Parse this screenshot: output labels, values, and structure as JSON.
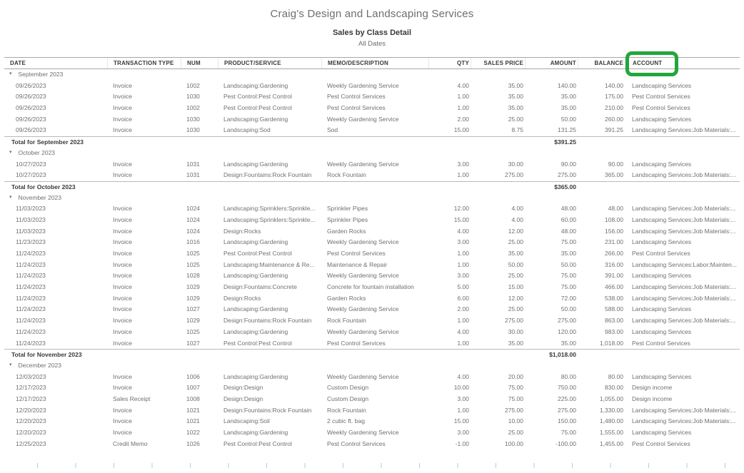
{
  "report": {
    "company": "Craig's Design and Landscaping Services",
    "title": "Sales by Class Detail",
    "date_range": "All Dates"
  },
  "highlight": {
    "highlighted_column": "ACCOUNT",
    "color": "#22a63c"
  },
  "table": {
    "columns": [
      {
        "label": "DATE",
        "align": "left"
      },
      {
        "label": "TRANSACTION TYPE",
        "align": "left"
      },
      {
        "label": "NUM",
        "align": "left"
      },
      {
        "label": "PRODUCT/SERVICE",
        "align": "left"
      },
      {
        "label": "MEMO/DESCRIPTION",
        "align": "left"
      },
      {
        "label": "QTY",
        "align": "right"
      },
      {
        "label": "SALES PRICE",
        "align": "right"
      },
      {
        "label": "AMOUNT",
        "align": "right"
      },
      {
        "label": "BALANCE",
        "align": "right"
      },
      {
        "label": "ACCOUNT",
        "align": "left"
      }
    ],
    "sections": [
      {
        "label": "September 2023",
        "rows": [
          [
            "09/26/2023",
            "Invoice",
            "1002",
            "Landscaping:Gardening",
            "Weekly Gardening Service",
            "4.00",
            "35.00",
            "140.00",
            "140.00",
            "Landscaping Services"
          ],
          [
            "09/26/2023",
            "Invoice",
            "1030",
            "Pest Control:Pest Control",
            "Pest Control Services",
            "1.00",
            "35.00",
            "35.00",
            "175.00",
            "Pest Control Services"
          ],
          [
            "09/26/2023",
            "Invoice",
            "1002",
            "Pest Control:Pest Control",
            "Pest Control Services",
            "1.00",
            "35.00",
            "35.00",
            "210.00",
            "Pest Control Services"
          ],
          [
            "09/26/2023",
            "Invoice",
            "1030",
            "Landscaping:Gardening",
            "Weekly Gardening Service",
            "2.00",
            "25.00",
            "50.00",
            "260.00",
            "Landscaping Services"
          ],
          [
            "09/26/2023",
            "Invoice",
            "1030",
            "Landscaping:Sod",
            "Sod",
            "15.00",
            "8.75",
            "131.25",
            "391.25",
            "Landscaping Services:Job Materials:..."
          ]
        ],
        "total_label": "Total for September 2023",
        "total_amount": "$391.25"
      },
      {
        "label": "October 2023",
        "rows": [
          [
            "10/27/2023",
            "Invoice",
            "1031",
            "Landscaping:Gardening",
            "Weekly Gardening Service",
            "3.00",
            "30.00",
            "90.00",
            "90.00",
            "Landscaping Services"
          ],
          [
            "10/27/2023",
            "Invoice",
            "1031",
            "Design:Fountains:Rock Fountain",
            "Rock Fountain",
            "1.00",
            "275.00",
            "275.00",
            "365.00",
            "Landscaping Services:Job Materials:..."
          ]
        ],
        "total_label": "Total for October 2023",
        "total_amount": "$365.00"
      },
      {
        "label": "November 2023",
        "rows": [
          [
            "11/03/2023",
            "Invoice",
            "1024",
            "Landscaping:Sprinklers:Sprinkle...",
            "Sprinkler Pipes",
            "12.00",
            "4.00",
            "48.00",
            "48.00",
            "Landscaping Services:Job Materials:..."
          ],
          [
            "11/03/2023",
            "Invoice",
            "1024",
            "Landscaping:Sprinklers:Sprinkle...",
            "Sprinkler Pipes",
            "15.00",
            "4.00",
            "60.00",
            "108.00",
            "Landscaping Services:Job Materials:..."
          ],
          [
            "11/03/2023",
            "Invoice",
            "1024",
            "Design:Rocks",
            "Garden Rocks",
            "4.00",
            "12.00",
            "48.00",
            "156.00",
            "Landscaping Services:Job Materials:..."
          ],
          [
            "11/23/2023",
            "Invoice",
            "1016",
            "Landscaping:Gardening",
            "Weekly Gardening Service",
            "3.00",
            "25.00",
            "75.00",
            "231.00",
            "Landscaping Services"
          ],
          [
            "11/24/2023",
            "Invoice",
            "1025",
            "Pest Control:Pest Control",
            "Pest Control Services",
            "1.00",
            "35.00",
            "35.00",
            "266.00",
            "Pest Control Services"
          ],
          [
            "11/24/2023",
            "Invoice",
            "1025",
            "Landscaping:Maintenance & Re...",
            "Maintenance & Repair",
            "1.00",
            "50.00",
            "50.00",
            "316.00",
            "Landscaping Services:Labor:Mainten..."
          ],
          [
            "11/24/2023",
            "Invoice",
            "1028",
            "Landscaping:Gardening",
            "Weekly Gardening Service",
            "3.00",
            "25.00",
            "75.00",
            "391.00",
            "Landscaping Services"
          ],
          [
            "11/24/2023",
            "Invoice",
            "1029",
            "Design:Fountains:Concrete",
            "Concrete for fountain installation",
            "5.00",
            "15.00",
            "75.00",
            "466.00",
            "Landscaping Services:Job Materials:..."
          ],
          [
            "11/24/2023",
            "Invoice",
            "1029",
            "Design:Rocks",
            "Garden Rocks",
            "6.00",
            "12.00",
            "72.00",
            "538.00",
            "Landscaping Services:Job Materials:..."
          ],
          [
            "11/24/2023",
            "Invoice",
            "1027",
            "Landscaping:Gardening",
            "Weekly Gardening Service",
            "2.00",
            "25.00",
            "50.00",
            "588.00",
            "Landscaping Services"
          ],
          [
            "11/24/2023",
            "Invoice",
            "1029",
            "Design:Fountains:Rock Fountain",
            "Rock Fountain",
            "1.00",
            "275.00",
            "275.00",
            "863.00",
            "Landscaping Services:Job Materials:..."
          ],
          [
            "11/24/2023",
            "Invoice",
            "1025",
            "Landscaping:Gardening",
            "Weekly Gardening Service",
            "4.00",
            "30.00",
            "120.00",
            "983.00",
            "Landscaping Services"
          ],
          [
            "11/24/2023",
            "Invoice",
            "1027",
            "Pest Control:Pest Control",
            "Pest Control Services",
            "1.00",
            "35.00",
            "35.00",
            "1,018.00",
            "Pest Control Services"
          ]
        ],
        "total_label": "Total for November 2023",
        "total_amount": "$1,018.00"
      },
      {
        "label": "December 2023",
        "rows": [
          [
            "12/03/2023",
            "Invoice",
            "1006",
            "Landscaping:Gardening",
            "Weekly Gardening Service",
            "4.00",
            "20.00",
            "80.00",
            "80.00",
            "Landscaping Services"
          ],
          [
            "12/17/2023",
            "Invoice",
            "1007",
            "Design:Design",
            "Custom Design",
            "10.00",
            "75.00",
            "750.00",
            "830.00",
            "Design income"
          ],
          [
            "12/17/2023",
            "Sales Receipt",
            "1008",
            "Design:Design",
            "Custom Design",
            "3.00",
            "75.00",
            "225.00",
            "1,055.00",
            "Design income"
          ],
          [
            "12/20/2023",
            "Invoice",
            "1021",
            "Design:Fountains:Rock Fountain",
            "Rock Fountain",
            "1.00",
            "275.00",
            "275.00",
            "1,330.00",
            "Landscaping Services:Job Materials:..."
          ],
          [
            "12/20/2023",
            "Invoice",
            "1021",
            "Landscaping:Soil",
            "2 cubic ft. bag",
            "15.00",
            "10.00",
            "150.00",
            "1,480.00",
            "Landscaping Services:Job Materials:..."
          ],
          [
            "12/20/2023",
            "Invoice",
            "1022",
            "Landscaping:Gardening",
            "Weekly Gardening Service",
            "3.00",
            "25.00",
            "75.00",
            "1,555.00",
            "Landscaping Services"
          ],
          [
            "12/25/2023",
            "Credit Memo",
            "1026",
            "Pest Control:Pest Control",
            "Pest Control Services",
            "-1.00",
            "100.00",
            "-100.00",
            "1,455.00",
            "Pest Control Services"
          ]
        ],
        "total_label": null,
        "total_amount": null
      }
    ]
  }
}
